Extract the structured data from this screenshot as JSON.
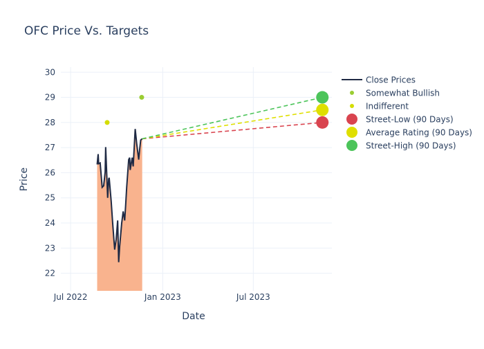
{
  "chart_data": {
    "type": "line",
    "title": "OFC Price Vs. Targets",
    "xlabel": "Date",
    "ylabel": "Price",
    "ylim": [
      21.3,
      30.2
    ],
    "xlim": [
      "2022-05-01",
      "2023-12-05"
    ],
    "grid": true,
    "legend_placement": "right",
    "x_ticks": [
      {
        "date": "2022-07-01",
        "label": "Jul 2022"
      },
      {
        "date": "2023-01-01",
        "label": "Jan 2023"
      },
      {
        "date": "2023-07-01",
        "label": "Jul 2023"
      }
    ],
    "y_ticks": [
      22,
      23,
      24,
      25,
      26,
      27,
      28,
      29,
      30
    ],
    "close_prices": {
      "name": "Close Prices",
      "color": "#1f2a44",
      "fill_color": "#f9b38e",
      "x": [
        "2022-08-23",
        "2022-08-25",
        "2022-08-26",
        "2022-08-29",
        "2022-09-02",
        "2022-09-05",
        "2022-09-08",
        "2022-09-09",
        "2022-09-13",
        "2022-09-15",
        "2022-09-16",
        "2022-09-20",
        "2022-09-23",
        "2022-09-26",
        "2022-09-27",
        "2022-09-30",
        "2022-10-03",
        "2022-10-05",
        "2022-10-07",
        "2022-10-11",
        "2022-10-14",
        "2022-10-17",
        "2022-10-19",
        "2022-10-21",
        "2022-10-25",
        "2022-10-27",
        "2022-10-28",
        "2022-11-01",
        "2022-11-03",
        "2022-11-07",
        "2022-11-10",
        "2022-11-14",
        "2022-11-16",
        "2022-11-18",
        "2022-11-21"
      ],
      "y": [
        26.33,
        26.74,
        26.36,
        26.39,
        25.42,
        25.48,
        26.03,
        27.02,
        25.0,
        25.75,
        25.8,
        24.87,
        23.99,
        23.2,
        22.94,
        23.35,
        24.1,
        22.44,
        23.08,
        23.99,
        24.46,
        24.1,
        24.73,
        25.42,
        26.52,
        26.6,
        26.11,
        26.6,
        26.25,
        27.74,
        27.16,
        26.52,
        26.94,
        27.3,
        27.35
      ]
    },
    "analyst_ratings": [
      {
        "name": "Somewhat Bullish",
        "date": "2022-11-20",
        "value": 29,
        "color": "#9acd32"
      },
      {
        "name": "Indifferent",
        "date": "2022-09-12",
        "value": 28,
        "color": "#d4dd00"
      }
    ],
    "targets": [
      {
        "name": "Street-Low (90 Days)",
        "date": "2023-11-16",
        "value": 28,
        "color": "#d9444f"
      },
      {
        "name": "Average Rating (90 Days)",
        "date": "2023-11-16",
        "value": 28.5,
        "color": "#dfdf00"
      },
      {
        "name": "Street-High (90 Days)",
        "date": "2023-11-16",
        "value": 29,
        "color": "#4cc45a"
      }
    ],
    "legend": [
      "Close Prices",
      "Somewhat Bullish",
      "Indifferent",
      "Street-Low (90 Days)",
      "Average Rating (90 Days)",
      "Street-High (90 Days)"
    ]
  }
}
